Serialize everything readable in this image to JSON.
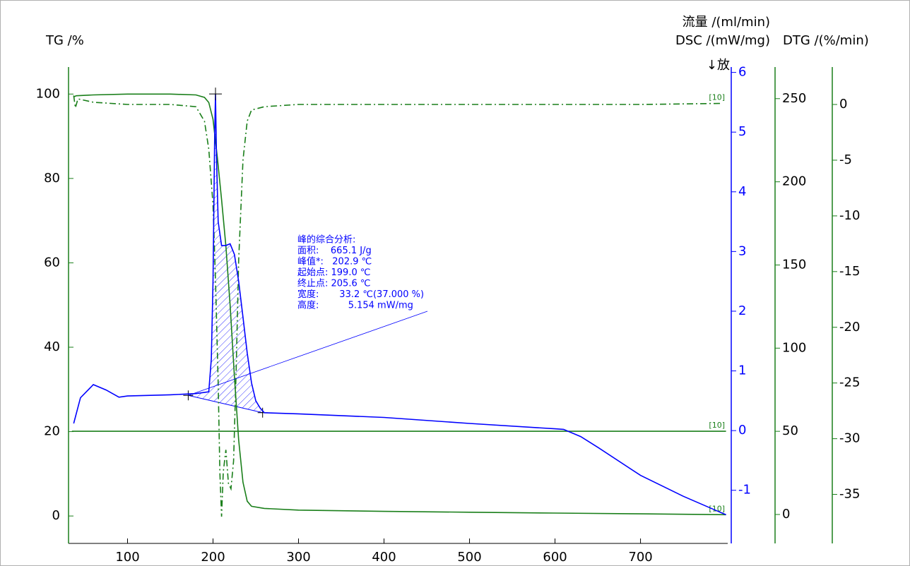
{
  "chart_data": {
    "type": "line",
    "xlim": [
      31,
      802
    ],
    "xticks": [
      100,
      200,
      300,
      400,
      500,
      600,
      700
    ],
    "exo_label": "↓放",
    "y_axes": [
      {
        "title": "TG /%",
        "ylim": [
          -6.5,
          106.4
        ],
        "yticks": [
          0,
          20,
          40,
          60,
          80,
          100
        ],
        "color": "#1a7f1a",
        "tick_color": "#000000"
      },
      {
        "title": "DSC /(mW/mg)",
        "ylim": [
          -1.89,
          6.09
        ],
        "yticks": [
          -1,
          0,
          1,
          2,
          3,
          4,
          5,
          6
        ],
        "color": "#0000ff",
        "tick_color": "#0000ff"
      },
      {
        "title": "流量 /(ml/min)",
        "ylim": [
          -17.4,
          269
        ],
        "yticks": [
          0,
          50,
          100,
          150,
          200,
          250
        ],
        "color": "#1a7f1a",
        "tick_color": "#000000"
      },
      {
        "title": "DTG /(%/min)",
        "ylim": [
          -39.4,
          3.36
        ],
        "yticks": [
          -35,
          -30,
          -25,
          -20,
          -15,
          -10,
          -5,
          0
        ],
        "color": "#1a7f1a",
        "tick_color": "#000000"
      }
    ],
    "series": [
      {
        "name": "TG",
        "axis": 0,
        "color": "#1a7f1a",
        "dash": "solid",
        "end_label": "[10]",
        "x": [
          37,
          40,
          60,
          100,
          150,
          180,
          190,
          195,
          200,
          205,
          210,
          215,
          220,
          225,
          230,
          235,
          240,
          245,
          260,
          300,
          400,
          500,
          600,
          700,
          800
        ],
        "values": [
          99.3,
          99.6,
          99.8,
          100,
          100,
          99.8,
          99.2,
          98,
          94,
          85,
          75,
          64,
          50,
          33,
          18,
          8,
          3.5,
          2.3,
          1.8,
          1.4,
          1.1,
          0.9,
          0.7,
          0.5,
          0.3
        ]
      },
      {
        "name": "DTG",
        "axis": 3,
        "color": "#1a7f1a",
        "dash": "dashdot",
        "end_label": "[10]",
        "x": [
          37,
          39,
          42,
          60,
          100,
          150,
          180,
          190,
          195,
          200,
          203,
          206,
          208,
          210,
          212,
          215,
          218,
          221,
          224,
          227,
          230,
          235,
          240,
          245,
          260,
          300,
          400,
          500,
          600,
          700,
          795
        ],
        "values": [
          0.8,
          -0.3,
          0.5,
          0.2,
          0,
          0,
          -0.2,
          -1.5,
          -4,
          -9,
          -16,
          -25,
          -33,
          -37,
          -33,
          -31,
          -34,
          -34.5,
          -32,
          -24,
          -14,
          -5,
          -1.5,
          -0.5,
          -0.2,
          0,
          0,
          0,
          0,
          0,
          0.1
        ]
      },
      {
        "name": "Flow",
        "axis": 2,
        "color": "#1a7f1a",
        "dash": "solid",
        "end_label": "[10]",
        "x": [
          35,
          800
        ],
        "values": [
          50,
          50
        ]
      },
      {
        "name": "DSC",
        "axis": 1,
        "color": "#0000ff",
        "dash": "solid",
        "x": [
          37,
          45,
          60,
          75,
          90,
          100,
          150,
          180,
          195,
          198,
          200,
          202,
          202.9,
          204,
          206,
          210,
          215,
          220,
          225,
          230,
          235,
          240,
          245,
          250,
          255,
          260,
          300,
          400,
          500,
          600,
          610,
          630,
          650,
          700,
          750,
          800
        ],
        "values": [
          0.12,
          0.55,
          0.77,
          0.68,
          0.56,
          0.58,
          0.6,
          0.62,
          0.65,
          1.2,
          2.5,
          5.0,
          5.64,
          4.6,
          3.5,
          3.1,
          3.1,
          3.13,
          2.95,
          2.5,
          1.9,
          1.3,
          0.8,
          0.5,
          0.38,
          0.3,
          0.28,
          0.22,
          0.12,
          0.03,
          0.02,
          -0.1,
          -0.28,
          -0.75,
          -1.1,
          -1.41
        ]
      }
    ],
    "peak_integration": {
      "series": 3,
      "baseline_x": [
        171,
        258
      ],
      "baseline_y": [
        0.59,
        0.3
      ]
    },
    "annotation": [
      "峰的综合分析:",
      "面积:    665.1 J/g",
      "峰值*:   202.9 ℃",
      "起始点: 199.0 ℃",
      "终止点: 205.6 ℃",
      "宽度:       33.2 ℃(37.000 %)",
      "高度:          5.154 mW/mg"
    ]
  }
}
